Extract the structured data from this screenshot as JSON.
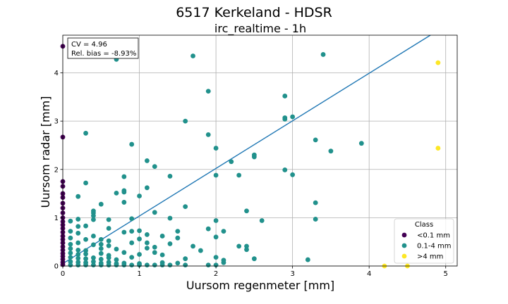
{
  "figure": {
    "title": "6517 Kerkeland - HDSR",
    "subtitle": "irc_realtime - 1h"
  },
  "stats": {
    "cv": "CV = 4.96",
    "bias": "Rel. bias = -8.93%"
  },
  "legend": {
    "title": "Class",
    "placement": "lower-right",
    "items": [
      {
        "label": "<0.1 mm",
        "color": "#440154"
      },
      {
        "label": "0.1-4 mm",
        "color": "#21918c"
      },
      {
        "label": ">4 mm",
        "color": "#fde725"
      }
    ]
  },
  "chart_data": {
    "type": "scatter",
    "xlabel": "Uursom regenmeter [mm]",
    "ylabel": "Uursom radar [mm]",
    "xlim": [
      0,
      5.15
    ],
    "ylim": [
      0,
      4.78
    ],
    "xticks": [
      0,
      1,
      2,
      3,
      4,
      5
    ],
    "yticks": [
      0,
      1,
      2,
      3,
      4
    ],
    "grid": true,
    "fit_line": {
      "x": [
        0,
        4.8
      ],
      "y": [
        0.05,
        4.78
      ],
      "color": "#1f77b4"
    },
    "series": [
      {
        "name": "<0.1 mm",
        "color": "#440154",
        "points": [
          [
            0,
            4.55
          ],
          [
            0,
            2.67
          ],
          [
            0,
            1.75
          ],
          [
            0,
            1.65
          ],
          [
            0,
            1.5
          ],
          [
            0,
            1.42
          ],
          [
            0,
            1.3
          ],
          [
            0,
            1.2
          ],
          [
            0,
            1.1
          ],
          [
            0,
            1.0
          ],
          [
            0,
            0.92
          ],
          [
            0,
            0.85
          ],
          [
            0,
            0.78
          ],
          [
            0,
            0.7
          ],
          [
            0,
            0.62
          ],
          [
            0,
            0.55
          ],
          [
            0,
            0.48
          ],
          [
            0,
            0.4
          ],
          [
            0,
            0.33
          ],
          [
            0,
            0.26
          ],
          [
            0,
            0.2
          ],
          [
            0,
            0.14
          ],
          [
            0,
            0.08
          ],
          [
            0,
            0.03
          ]
        ]
      },
      {
        "name": "0.1-4 mm",
        "color": "#21918c",
        "points": [
          [
            0.7,
            4.28
          ],
          [
            1.7,
            4.35
          ],
          [
            3.4,
            4.38
          ],
          [
            1.9,
            3.62
          ],
          [
            2.9,
            3.52
          ],
          [
            1.6,
            3.0
          ],
          [
            2.9,
            3.07
          ],
          [
            3.0,
            3.09
          ],
          [
            2.9,
            3.04
          ],
          [
            0.3,
            2.75
          ],
          [
            1.9,
            2.72
          ],
          [
            3.3,
            2.61
          ],
          [
            0.9,
            2.52
          ],
          [
            3.9,
            2.54
          ],
          [
            2.0,
            2.44
          ],
          [
            3.5,
            2.38
          ],
          [
            2.5,
            2.3
          ],
          [
            2.5,
            2.26
          ],
          [
            1.1,
            2.18
          ],
          [
            2.2,
            2.16
          ],
          [
            1.2,
            2.06
          ],
          [
            2.9,
            1.99
          ],
          [
            0.8,
            1.85
          ],
          [
            1.4,
            1.86
          ],
          [
            2.0,
            1.88
          ],
          [
            2.3,
            1.88
          ],
          [
            3.0,
            1.89
          ],
          [
            0.3,
            1.72
          ],
          [
            1.1,
            1.62
          ],
          [
            0.8,
            1.56
          ],
          [
            0.7,
            1.51
          ],
          [
            0.8,
            1.53
          ],
          [
            1.0,
            1.45
          ],
          [
            0.2,
            1.44
          ],
          [
            0.8,
            1.32
          ],
          [
            3.3,
            1.31
          ],
          [
            0.5,
            1.28
          ],
          [
            1.6,
            1.23
          ],
          [
            0.4,
            1.14
          ],
          [
            2.4,
            1.14
          ],
          [
            0.4,
            1.1
          ],
          [
            1.2,
            1.11
          ],
          [
            0.4,
            1.04
          ],
          [
            0.1,
            0.93
          ],
          [
            0.2,
            0.97
          ],
          [
            0.4,
            0.96
          ],
          [
            0.6,
            0.96
          ],
          [
            0.9,
            0.98
          ],
          [
            1.4,
            0.99
          ],
          [
            2.0,
            0.94
          ],
          [
            2.6,
            0.94
          ],
          [
            3.3,
            0.97
          ],
          [
            0.2,
            0.82
          ],
          [
            0.3,
            0.83
          ],
          [
            0.6,
            0.78
          ],
          [
            0.9,
            0.72
          ],
          [
            1.0,
            0.73
          ],
          [
            1.5,
            0.72
          ],
          [
            1.9,
            0.77
          ],
          [
            2.1,
            0.72
          ],
          [
            0.1,
            0.72
          ],
          [
            0.2,
            0.68
          ],
          [
            0.4,
            0.62
          ],
          [
            0.8,
            0.7
          ],
          [
            1.1,
            0.65
          ],
          [
            1.3,
            0.62
          ],
          [
            0.1,
            0.58
          ],
          [
            0.3,
            0.55
          ],
          [
            0.5,
            0.55
          ],
          [
            0.6,
            0.52
          ],
          [
            1.0,
            0.56
          ],
          [
            1.5,
            0.58
          ],
          [
            2.0,
            0.6
          ],
          [
            0.1,
            0.45
          ],
          [
            0.2,
            0.48
          ],
          [
            0.4,
            0.44
          ],
          [
            0.5,
            0.45
          ],
          [
            0.6,
            0.42
          ],
          [
            0.9,
            0.48
          ],
          [
            1.1,
            0.48
          ],
          [
            1.4,
            0.46
          ],
          [
            0.1,
            0.36
          ],
          [
            0.2,
            0.33
          ],
          [
            0.3,
            0.32
          ],
          [
            0.5,
            0.36
          ],
          [
            0.7,
            0.35
          ],
          [
            1.1,
            0.37
          ],
          [
            1.2,
            0.39
          ],
          [
            1.7,
            0.41
          ],
          [
            1.8,
            0.32
          ],
          [
            2.3,
            0.41
          ],
          [
            2.4,
            0.41
          ],
          [
            2.4,
            0.34
          ],
          [
            0.1,
            0.27
          ],
          [
            0.2,
            0.24
          ],
          [
            0.3,
            0.25
          ],
          [
            0.5,
            0.26
          ],
          [
            0.6,
            0.22
          ],
          [
            0.8,
            0.28
          ],
          [
            1.0,
            0.24
          ],
          [
            1.2,
            0.28
          ],
          [
            1.3,
            0.23
          ],
          [
            0.1,
            0.18
          ],
          [
            0.2,
            0.16
          ],
          [
            0.3,
            0.15
          ],
          [
            0.4,
            0.17
          ],
          [
            0.5,
            0.14
          ],
          [
            0.6,
            0.17
          ],
          [
            0.7,
            0.13
          ],
          [
            0.9,
            0.18
          ],
          [
            1.6,
            0.15
          ],
          [
            2.0,
            0.18
          ],
          [
            2.1,
            0.12
          ],
          [
            2.5,
            0.15
          ],
          [
            3.2,
            0.13
          ],
          [
            0.1,
            0.09
          ],
          [
            0.2,
            0.08
          ],
          [
            0.3,
            0.07
          ],
          [
            0.4,
            0.09
          ],
          [
            0.5,
            0.06
          ],
          [
            0.6,
            0.08
          ],
          [
            0.7,
            0.05
          ],
          [
            0.8,
            0.06
          ],
          [
            1.0,
            0.05
          ],
          [
            1.3,
            0.07
          ],
          [
            1.5,
            0.06
          ],
          [
            2.1,
            0.07
          ],
          [
            0.1,
            0.02
          ],
          [
            0.2,
            0.02
          ],
          [
            0.3,
            0.02
          ],
          [
            0.4,
            0.02
          ],
          [
            0.5,
            0.02
          ],
          [
            0.6,
            0.02
          ],
          [
            0.7,
            0.02
          ],
          [
            0.8,
            0.02
          ],
          [
            0.9,
            0.02
          ],
          [
            1.0,
            0.02
          ],
          [
            1.1,
            0.02
          ],
          [
            1.2,
            0.02
          ],
          [
            1.3,
            0.02
          ],
          [
            1.4,
            0.02
          ],
          [
            1.6,
            0.02
          ],
          [
            1.9,
            0.02
          ],
          [
            2.0,
            0.02
          ]
        ]
      },
      {
        "name": ">4 mm",
        "color": "#fde725",
        "points": [
          [
            4.9,
            4.21
          ],
          [
            4.9,
            2.44
          ],
          [
            4.2,
            0.0
          ],
          [
            4.5,
            0.0
          ]
        ]
      }
    ]
  }
}
